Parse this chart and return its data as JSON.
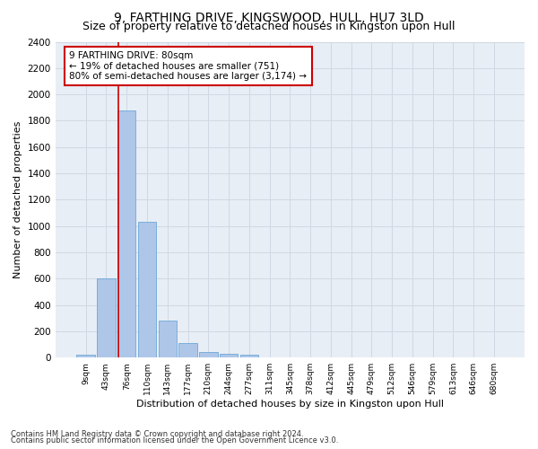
{
  "title": "9, FARTHING DRIVE, KINGSWOOD, HULL, HU7 3LD",
  "subtitle": "Size of property relative to detached houses in Kingston upon Hull",
  "xlabel": "Distribution of detached houses by size in Kingston upon Hull",
  "ylabel": "Number of detached properties",
  "footnote1": "Contains HM Land Registry data © Crown copyright and database right 2024.",
  "footnote2": "Contains public sector information licensed under the Open Government Licence v3.0.",
  "bar_labels": [
    "9sqm",
    "43sqm",
    "76sqm",
    "110sqm",
    "143sqm",
    "177sqm",
    "210sqm",
    "244sqm",
    "277sqm",
    "311sqm",
    "345sqm",
    "378sqm",
    "412sqm",
    "445sqm",
    "479sqm",
    "512sqm",
    "546sqm",
    "579sqm",
    "613sqm",
    "646sqm",
    "680sqm"
  ],
  "bar_values": [
    20,
    600,
    1880,
    1030,
    280,
    110,
    45,
    30,
    20,
    0,
    0,
    0,
    0,
    0,
    0,
    0,
    0,
    0,
    0,
    0,
    0
  ],
  "bar_color": "#aec6e8",
  "bar_edge_color": "#5a9fd4",
  "property_line_bar_index": 2,
  "property_sqm": 80,
  "annotation_text": "9 FARTHING DRIVE: 80sqm\n← 19% of detached houses are smaller (751)\n80% of semi-detached houses are larger (3,174) →",
  "annotation_box_color": "#ffffff",
  "annotation_box_edge": "#cc0000",
  "vline_color": "#cc0000",
  "ylim": [
    0,
    2400
  ],
  "yticks": [
    0,
    200,
    400,
    600,
    800,
    1000,
    1200,
    1400,
    1600,
    1800,
    2000,
    2200,
    2400
  ],
  "grid_color": "#d0d8e4",
  "bg_color": "#e8eef5",
  "title_fontsize": 10,
  "subtitle_fontsize": 9,
  "footnote_fontsize": 6
}
